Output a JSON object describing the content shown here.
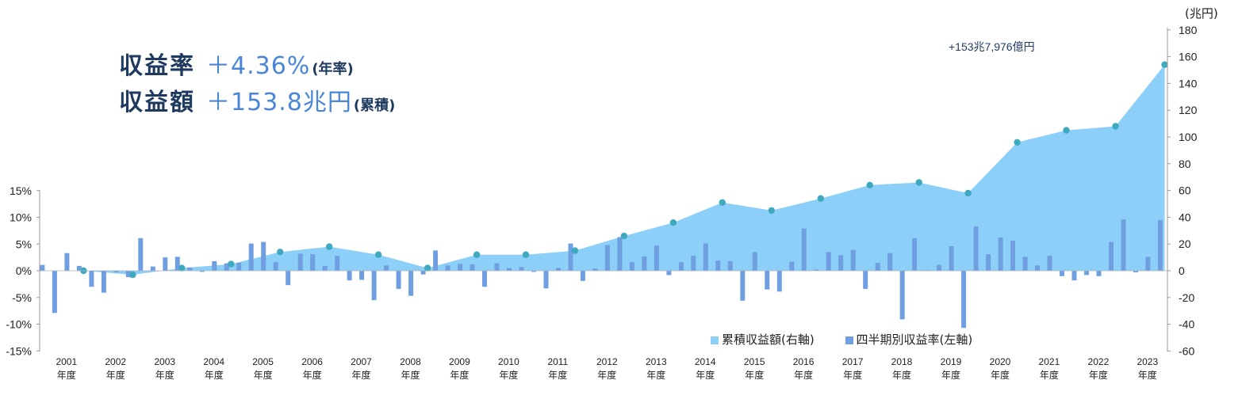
{
  "headline": {
    "rate_label": "収益率",
    "rate_value": "＋4.36%",
    "rate_suffix": "(年率)",
    "amount_label": "収益額",
    "amount_value": "＋153.8兆円",
    "amount_suffix": "(累積)"
  },
  "callout": "+153兆7,976億円",
  "right_axis_unit": "(兆円)",
  "colors": {
    "area": "#8ccff9",
    "bar": "#6f9fe0",
    "dot": "#3fa9bf",
    "axis": "#999999"
  },
  "chart_data": {
    "type": "bar",
    "title": "",
    "legend": [
      "累積収益額(右軸)",
      "四半期別収益率(左軸)"
    ],
    "legend_position": "bottom-right",
    "left_axis": {
      "ticks": [
        "15%",
        "10%",
        "5%",
        "0%",
        "-5%",
        "-10%",
        "-15%"
      ],
      "ylim": [
        -15,
        15
      ]
    },
    "right_axis": {
      "ticks": [
        "180",
        "160",
        "140",
        "120",
        "100",
        "80",
        "60",
        "40",
        "20",
        "0",
        "-20",
        "-40",
        "-60"
      ],
      "ylim": [
        -60,
        180
      ]
    },
    "years": [
      {
        "year": "2001",
        "label": "年度"
      },
      {
        "year": "2002",
        "label": "年度"
      },
      {
        "year": "2003",
        "label": "年度"
      },
      {
        "year": "2004",
        "label": "年度"
      },
      {
        "year": "2005",
        "label": "年度"
      },
      {
        "year": "2006",
        "label": "年度"
      },
      {
        "year": "2007",
        "label": "年度"
      },
      {
        "year": "2008",
        "label": "年度"
      },
      {
        "year": "2009",
        "label": "年度"
      },
      {
        "year": "2010",
        "label": "年度"
      },
      {
        "year": "2011",
        "label": "年度"
      },
      {
        "year": "2012",
        "label": "年度"
      },
      {
        "year": "2013",
        "label": "年度"
      },
      {
        "year": "2014",
        "label": "年度"
      },
      {
        "year": "2015",
        "label": "年度"
      },
      {
        "year": "2016",
        "label": "年度"
      },
      {
        "year": "2017",
        "label": "年度"
      },
      {
        "year": "2018",
        "label": "年度"
      },
      {
        "year": "2019",
        "label": "年度"
      },
      {
        "year": "2020",
        "label": "年度"
      },
      {
        "year": "2021",
        "label": "年度"
      },
      {
        "year": "2022",
        "label": "年度"
      },
      {
        "year": "2023",
        "label": "年度"
      }
    ],
    "series": [
      {
        "name": "四半期別収益率(左軸)",
        "axis": "left",
        "type": "bar",
        "values": [
          1.1,
          -7.9,
          3.3,
          0.9,
          -3.0,
          -4.1,
          -0.3,
          -1.2,
          6.1,
          0.8,
          2.5,
          2.6,
          0.6,
          -0.2,
          1.8,
          1.4,
          1.5,
          5.1,
          5.4,
          1.6,
          -2.7,
          3.2,
          3.1,
          0.9,
          2.8,
          -1.8,
          -1.7,
          -5.5,
          1.0,
          -3.4,
          -4.7,
          -0.7,
          3.8,
          1.0,
          1.3,
          1.2,
          -3.0,
          1.4,
          0.5,
          0.7,
          -0.2,
          -3.3,
          0.5,
          5.1,
          -1.9,
          0.4,
          4.8,
          6.3,
          1.6,
          2.7,
          4.7,
          -0.8,
          1.6,
          2.8,
          5.1,
          1.9,
          1.8,
          -5.6,
          3.5,
          -3.5,
          -3.9,
          1.7,
          7.9,
          0.2,
          3.5,
          2.9,
          3.9,
          -3.4,
          1.5,
          3.3,
          -9.1,
          6.1,
          0.1,
          1.1,
          4.6,
          -10.7,
          8.3,
          3.1,
          6.2,
          5.6,
          2.6,
          1.0,
          2.8,
          -1.0,
          -1.8,
          -0.8,
          -1.0,
          5.4,
          9.6,
          -0.3,
          2.6,
          9.5
        ]
      },
      {
        "name": "累積収益額(右軸)",
        "axis": "right",
        "type": "area",
        "points": [
          {
            "x": "2001",
            "y": 0
          },
          {
            "x": "2002",
            "y": -3
          },
          {
            "x": "2003",
            "y": 2
          },
          {
            "x": "2004",
            "y": 5
          },
          {
            "x": "2005",
            "y": 14
          },
          {
            "x": "2006",
            "y": 18
          },
          {
            "x": "2007",
            "y": 12
          },
          {
            "x": "2008",
            "y": 2
          },
          {
            "x": "2009",
            "y": 12
          },
          {
            "x": "2010",
            "y": 12
          },
          {
            "x": "2011",
            "y": 15
          },
          {
            "x": "2012",
            "y": 26
          },
          {
            "x": "2013",
            "y": 36
          },
          {
            "x": "2014",
            "y": 51
          },
          {
            "x": "2015",
            "y": 45
          },
          {
            "x": "2016",
            "y": 54
          },
          {
            "x": "2017",
            "y": 64
          },
          {
            "x": "2018",
            "y": 66
          },
          {
            "x": "2019",
            "y": 58
          },
          {
            "x": "2020",
            "y": 96
          },
          {
            "x": "2021",
            "y": 105
          },
          {
            "x": "2022",
            "y": 108
          },
          {
            "x": "2023",
            "y": 154
          }
        ]
      }
    ]
  }
}
